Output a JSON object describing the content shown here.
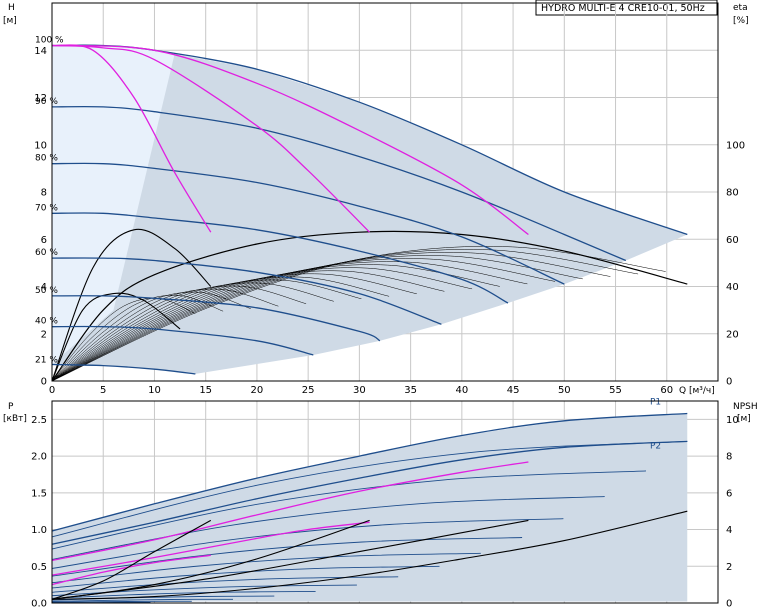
{
  "title": "HYDRO MULTI-E 4 CRE10-01, 50Hz",
  "colors": {
    "speed_curve": "#1f4e8c",
    "efficiency_curve": "#000000",
    "system_curve": "#e020e0",
    "area_fill": "#cfdae6",
    "area_fill_light": "#e8f1fb",
    "grid": "#c8c8c8"
  },
  "top": {
    "y_label_line1": "H",
    "y_label_line2": "[м]",
    "y2_label_line1": "eta",
    "y2_label_line2": "[%]",
    "x_label": "Q [м³/ч]",
    "xlim": [
      0,
      65
    ],
    "ylim": [
      0,
      16
    ],
    "y2lim": [
      0,
      160
    ],
    "x_ticks": [
      "0",
      "5",
      "10",
      "15",
      "20",
      "25",
      "30",
      "35",
      "40",
      "45",
      "50",
      "55",
      "60"
    ],
    "y_ticks": [
      "0",
      "2",
      "4",
      "6",
      "8",
      "10",
      "12",
      "14"
    ],
    "y2_ticks": [
      "0",
      "20",
      "40",
      "60",
      "80",
      "100"
    ]
  },
  "bottom": {
    "y_label_line1": "P",
    "y_label_line2": "[кВт]",
    "y2_label_line1": "NPSH",
    "y2_label_line2": "[м]",
    "xlim": [
      0,
      65
    ],
    "ylim": [
      0,
      2.75
    ],
    "y2lim": [
      0,
      11
    ],
    "y_ticks": [
      "0.0",
      "0.5",
      "1.0",
      "1.5",
      "2.0",
      "2.5"
    ],
    "y2_ticks": [
      "0",
      "2",
      "4",
      "6",
      "8",
      "10"
    ],
    "series_labels": [
      "P1",
      "P2"
    ]
  },
  "chart_data": [
    {
      "type": "line",
      "title": "HYDRO MULTI-E 4 CRE10-01, 50Hz",
      "xlabel": "Q [м³/ч]",
      "ylabel": "H [м]",
      "y2label": "eta [%]",
      "xlim": [
        0,
        65
      ],
      "ylim": [
        0,
        16
      ],
      "y2lim": [
        0,
        160
      ],
      "grid": true,
      "series": [
        {
          "name": "100 %",
          "kind": "head",
          "x": [
            0,
            5,
            10,
            20,
            30,
            40,
            50,
            62
          ],
          "y": [
            14.2,
            14.2,
            14.0,
            13.2,
            11.8,
            10.0,
            8.0,
            6.2
          ]
        },
        {
          "name": "90 %",
          "kind": "head",
          "x": [
            0,
            5,
            10,
            20,
            30,
            40,
            50,
            56
          ],
          "y": [
            11.6,
            11.6,
            11.4,
            10.7,
            9.5,
            8.0,
            6.2,
            5.1
          ]
        },
        {
          "name": "80 %",
          "kind": "head",
          "x": [
            0,
            5,
            10,
            20,
            30,
            40,
            50
          ],
          "y": [
            9.2,
            9.2,
            9.0,
            8.4,
            7.4,
            6.1,
            4.1
          ]
        },
        {
          "name": "70 %",
          "kind": "head",
          "x": [
            0,
            5,
            10,
            20,
            30,
            40,
            44.5
          ],
          "y": [
            7.1,
            7.1,
            6.9,
            6.4,
            5.5,
            4.3,
            3.3
          ]
        },
        {
          "name": "60 %",
          "kind": "head",
          "x": [
            0,
            5,
            10,
            20,
            30,
            38
          ],
          "y": [
            5.2,
            5.2,
            5.1,
            4.6,
            3.7,
            2.4
          ]
        },
        {
          "name": "50 %",
          "kind": "head",
          "x": [
            0,
            5,
            10,
            20,
            30,
            32
          ],
          "y": [
            3.6,
            3.6,
            3.5,
            3.1,
            2.1,
            1.7
          ]
        },
        {
          "name": "40 %",
          "kind": "head",
          "x": [
            0,
            5,
            10,
            20,
            25.5
          ],
          "y": [
            2.3,
            2.3,
            2.2,
            1.7,
            1.1
          ]
        },
        {
          "name": "21 %",
          "kind": "head",
          "x": [
            0,
            5,
            10,
            14
          ],
          "y": [
            0.7,
            0.65,
            0.5,
            0.3
          ]
        },
        {
          "name": "",
          "kind": "system",
          "x": [
            0,
            4,
            8,
            12,
            15.5
          ],
          "y": [
            14.2,
            14.0,
            12.0,
            8.8,
            6.3
          ]
        },
        {
          "name": "",
          "kind": "system",
          "x": [
            0,
            5,
            10,
            20,
            25,
            31
          ],
          "y": [
            14.2,
            14.1,
            13.6,
            10.8,
            8.9,
            6.3
          ]
        },
        {
          "name": "",
          "kind": "system",
          "x": [
            0,
            10,
            20,
            30,
            40,
            46.5
          ],
          "y": [
            14.2,
            14.0,
            12.6,
            10.6,
            8.3,
            6.2
          ]
        },
        {
          "name": "eta",
          "kind": "efficiency",
          "x": [
            0,
            5,
            10,
            20,
            30,
            40,
            50,
            62
          ],
          "y": [
            0,
            30,
            45,
            58,
            63,
            62,
            55,
            41
          ]
        },
        {
          "name": "eta",
          "kind": "efficiency",
          "x": [
            0,
            4,
            8,
            12,
            15.5
          ],
          "y": [
            0,
            48,
            64,
            56,
            40
          ]
        },
        {
          "name": "eta",
          "kind": "efficiency",
          "x": [
            0,
            3,
            6,
            9,
            12.5
          ],
          "y": [
            0,
            30,
            37,
            34,
            22
          ]
        }
      ]
    },
    {
      "type": "line",
      "xlabel": "",
      "ylabel": "P [кВт]",
      "y2label": "NPSH [м]",
      "xlim": [
        0,
        65
      ],
      "ylim": [
        0,
        2.75
      ],
      "y2lim": [
        0,
        11
      ],
      "grid": true,
      "series": [
        {
          "name": "P1",
          "kind": "power",
          "x": [
            0,
            10,
            20,
            30,
            40,
            50,
            62
          ],
          "y": [
            0.98,
            1.35,
            1.7,
            2.0,
            2.28,
            2.48,
            2.58
          ]
        },
        {
          "name": "P2",
          "kind": "power",
          "x": [
            0,
            10,
            20,
            30,
            40,
            50,
            62
          ],
          "y": [
            0.8,
            1.1,
            1.42,
            1.7,
            1.95,
            2.12,
            2.2
          ]
        },
        {
          "name": "",
          "kind": "power",
          "x": [
            0,
            10,
            20,
            30,
            40,
            46.5
          ],
          "y": [
            0.58,
            0.86,
            1.2,
            1.52,
            1.78,
            1.92
          ]
        },
        {
          "name": "",
          "kind": "power",
          "x": [
            0,
            10,
            20,
            25,
            31
          ],
          "y": [
            0.38,
            0.62,
            0.88,
            1.0,
            1.1
          ]
        },
        {
          "name": "",
          "kind": "power",
          "x": [
            0,
            5,
            10,
            15.5
          ],
          "y": [
            0.25,
            0.42,
            0.55,
            0.65
          ]
        },
        {
          "name": "NPSH",
          "kind": "npsh",
          "x": [
            0,
            10,
            20,
            30,
            40,
            50,
            62
          ],
          "y": [
            0.2,
            0.35,
            0.8,
            1.5,
            2.4,
            3.4,
            5.0
          ]
        },
        {
          "name": "NPSH",
          "kind": "npsh",
          "x": [
            0,
            5,
            10,
            15.5
          ],
          "y": [
            0.2,
            1.2,
            2.8,
            4.5
          ]
        },
        {
          "name": "NPSH",
          "kind": "npsh",
          "x": [
            0,
            10,
            20,
            31
          ],
          "y": [
            0.2,
            1.0,
            2.4,
            4.5
          ]
        },
        {
          "name": "NPSH",
          "kind": "npsh",
          "x": [
            0,
            15,
            30,
            46.5
          ],
          "y": [
            0.2,
            1.3,
            2.8,
            4.5
          ]
        }
      ]
    }
  ]
}
